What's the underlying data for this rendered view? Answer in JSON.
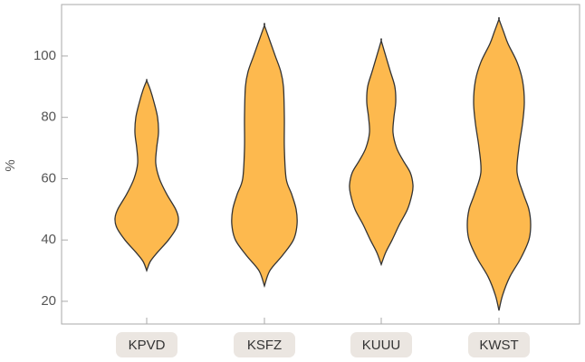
{
  "chart_data": {
    "type": "violin",
    "y_label": "%",
    "categories": [
      "KPVD",
      "KSFZ",
      "KUUU",
      "KWST"
    ],
    "color": "#fdb94e",
    "edge_color": "#333333",
    "violins": [
      {
        "y": [
          30,
          33,
          36,
          40,
          44,
          47,
          50,
          55,
          60,
          65,
          70,
          75,
          80,
          85,
          89,
          92
        ],
        "density": [
          0,
          4,
          12,
          24,
          33,
          35,
          32,
          22,
          14,
          10,
          11,
          13,
          12,
          8,
          4,
          0
        ]
      },
      {
        "y": [
          25,
          30,
          35,
          40,
          45,
          50,
          55,
          60,
          70,
          80,
          90,
          95,
          100,
          105,
          110
        ],
        "density": [
          0,
          6,
          20,
          32,
          36,
          35,
          30,
          24,
          22,
          22,
          21,
          18,
          12,
          6,
          0
        ]
      },
      {
        "y": [
          32,
          36,
          40,
          45,
          50,
          55,
          58,
          62,
          66,
          70,
          75,
          80,
          85,
          90,
          95,
          100,
          105
        ],
        "density": [
          0,
          5,
          12,
          20,
          29,
          34,
          35,
          32,
          24,
          17,
          13,
          14,
          16,
          15,
          10,
          5,
          0
        ]
      },
      {
        "y": [
          17,
          22,
          28,
          34,
          40,
          45,
          50,
          55,
          62,
          70,
          78,
          85,
          92,
          98,
          104,
          108,
          112
        ],
        "density": [
          0,
          4,
          12,
          24,
          33,
          35,
          33,
          27,
          20,
          22,
          26,
          28,
          26,
          20,
          10,
          5,
          0
        ]
      }
    ],
    "ylim": [
      12.6,
      116.8
    ],
    "yticks": [
      20,
      40,
      60,
      80,
      100
    ]
  }
}
